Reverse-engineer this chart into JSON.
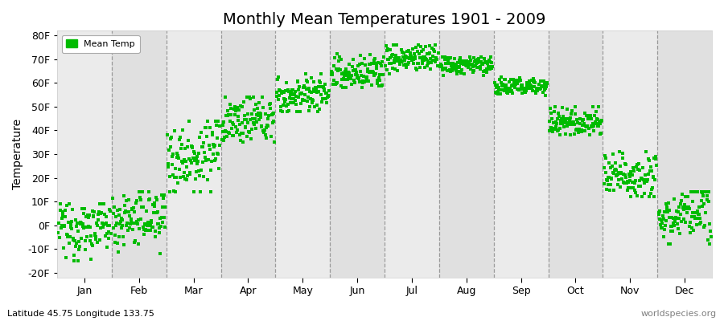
{
  "title": "Monthly Mean Temperatures 1901 - 2009",
  "ylabel": "Temperature",
  "xlabel_bottom_left": "Latitude 45.75 Longitude 133.75",
  "xlabel_bottom_right": "worldspecies.org",
  "legend_label": "Mean Temp",
  "yticks": [
    -20,
    -10,
    0,
    10,
    20,
    30,
    40,
    50,
    60,
    70,
    80
  ],
  "ytick_labels": [
    "-20F",
    "-10F",
    "0F",
    "10F",
    "20F",
    "30F",
    "40F",
    "50F",
    "60F",
    "70F",
    "80F"
  ],
  "ylim": [
    -22,
    82
  ],
  "months": [
    "Jan",
    "Feb",
    "Mar",
    "Apr",
    "May",
    "Jun",
    "Jul",
    "Aug",
    "Sep",
    "Oct",
    "Nov",
    "Dec"
  ],
  "month_centers": [
    0.5,
    1.5,
    2.5,
    3.5,
    4.5,
    5.5,
    6.5,
    7.5,
    8.5,
    9.5,
    10.5,
    11.5
  ],
  "month_boundaries": [
    0,
    1,
    2,
    3,
    4,
    5,
    6,
    7,
    8,
    9,
    10,
    11,
    12
  ],
  "dot_color": "#00BB00",
  "dot_size": 6,
  "stripe_colors": [
    "#ebebeb",
    "#e0e0e0"
  ],
  "title_fontsize": 14,
  "axis_label_fontsize": 10,
  "tick_fontsize": 9,
  "month_data": {
    "Jan": {
      "mean": -2,
      "std": 6,
      "trend": 0.02,
      "range": [
        -15,
        9
      ]
    },
    "Feb": {
      "mean": 2,
      "std": 6,
      "trend": 0.02,
      "range": [
        -13,
        14
      ]
    },
    "Mar": {
      "mean": 28,
      "std": 8,
      "trend": 0.03,
      "range": [
        14,
        44
      ]
    },
    "Apr": {
      "mean": 43,
      "std": 5,
      "trend": 0.02,
      "range": [
        35,
        54
      ]
    },
    "May": {
      "mean": 54,
      "std": 4,
      "trend": 0.02,
      "range": [
        48,
        64
      ]
    },
    "Jun": {
      "mean": 63,
      "std": 4,
      "trend": 0.02,
      "range": [
        58,
        75
      ]
    },
    "Jul": {
      "mean": 70,
      "std": 3,
      "trend": 0.01,
      "range": [
        64,
        76
      ]
    },
    "Aug": {
      "mean": 67,
      "std": 2,
      "trend": 0.01,
      "range": [
        63,
        71
      ]
    },
    "Sep": {
      "mean": 58,
      "std": 2,
      "trend": 0.01,
      "range": [
        54,
        63
      ]
    },
    "Oct": {
      "mean": 43,
      "std": 3,
      "trend": 0.01,
      "range": [
        38,
        50
      ]
    },
    "Nov": {
      "mean": 20,
      "std": 5,
      "trend": 0.02,
      "range": [
        12,
        31
      ]
    },
    "Dec": {
      "mean": 3,
      "std": 6,
      "trend": 0.02,
      "range": [
        -8,
        14
      ]
    }
  },
  "n_years": 109
}
